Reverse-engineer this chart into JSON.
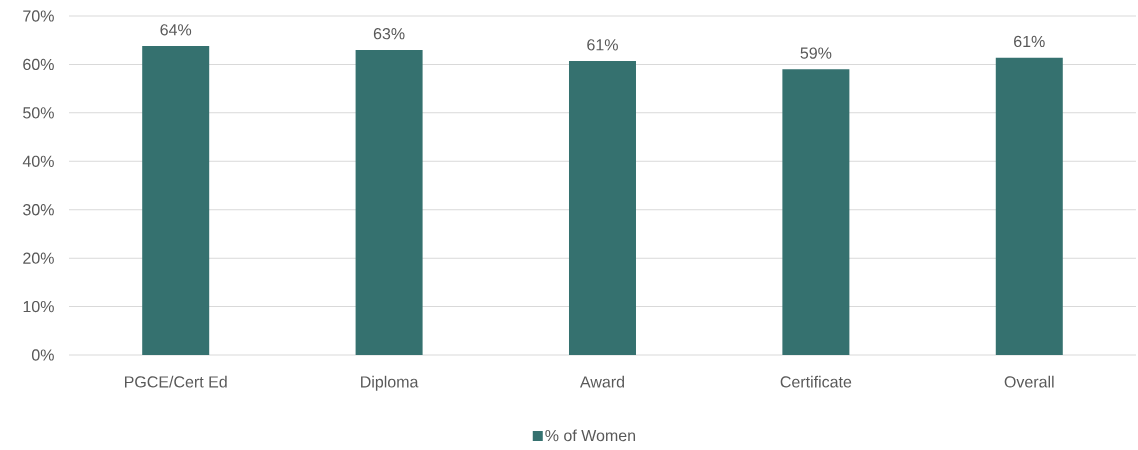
{
  "chart_data": {
    "type": "bar",
    "categories": [
      "PGCE/Cert Ed",
      "Diploma",
      "Award",
      "Certificate",
      "Overall"
    ],
    "series": [
      {
        "name": "% of Women",
        "color": "#35716F",
        "values": [
          63.8,
          63.0,
          60.7,
          59.0,
          61.4
        ],
        "value_labels": [
          "64%",
          "63%",
          "61%",
          "59%",
          "61%"
        ]
      }
    ],
    "ylim": [
      0,
      70
    ],
    "yticks": [
      {
        "value": 0,
        "label": "0%"
      },
      {
        "value": 10,
        "label": "10%"
      },
      {
        "value": 20,
        "label": "20%"
      },
      {
        "value": 30,
        "label": "30%"
      },
      {
        "value": 40,
        "label": "40%"
      },
      {
        "value": 50,
        "label": "50%"
      },
      {
        "value": 60,
        "label": "60%"
      },
      {
        "value": 70,
        "label": "70%"
      }
    ],
    "grid": "y",
    "legend": "bottom"
  }
}
